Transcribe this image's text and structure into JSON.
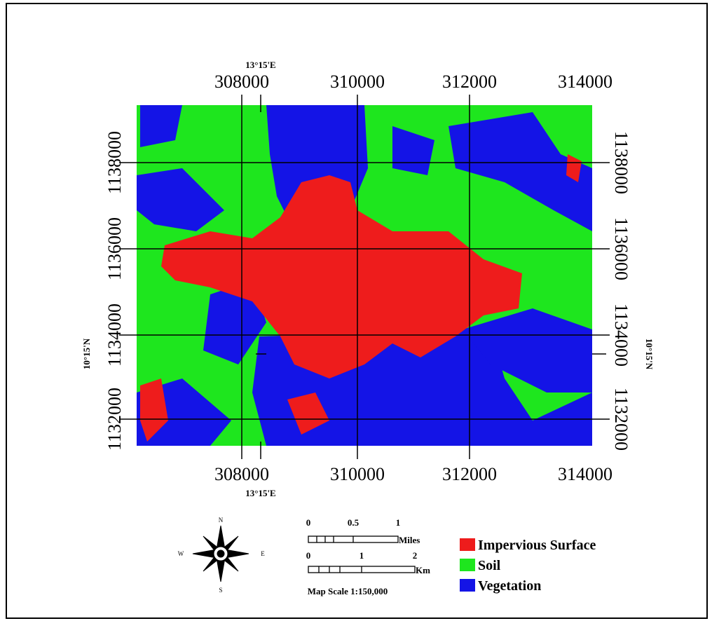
{
  "map": {
    "top_meridian": "13°15'E",
    "bottom_meridian": "13°15'E",
    "left_parallel": "10°15'N",
    "right_parallel": "10°15'N",
    "top_labels": [
      "308000",
      "310000",
      "312000",
      "314000"
    ],
    "bottom_labels": [
      "308000",
      "310000",
      "312000",
      "314000"
    ],
    "left_labels": [
      "1138000",
      "1136000",
      "1134000",
      "1132000"
    ],
    "right_labels": [
      "1138000",
      "1136000",
      "1134000",
      "1132000"
    ]
  },
  "legend": [
    {
      "label": "Impervious Surface",
      "color": "#ee1c1c"
    },
    {
      "label": "Soil",
      "color": "#1ee61e"
    },
    {
      "label": "Vegetation",
      "color": "#1414e6"
    }
  ],
  "scale": {
    "miles_ticks": [
      "0",
      "0.5",
      "1"
    ],
    "miles_unit": "Miles",
    "km_ticks": [
      "0",
      "1",
      "2"
    ],
    "km_unit": "Km",
    "text": "Map Scale 1:150,000"
  },
  "compass": {
    "n": "N",
    "s": "S",
    "e": "E",
    "w": "W"
  }
}
